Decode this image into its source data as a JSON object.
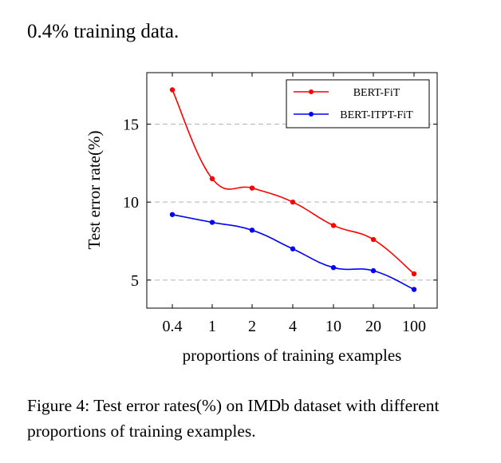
{
  "top_text": "0.4% training data.",
  "caption": "Figure 4: Test error rates(%) on IMDb dataset with different proportions of training examples.",
  "chart_data": {
    "type": "line",
    "categories": [
      "0.4",
      "1",
      "2",
      "4",
      "10",
      "20",
      "100"
    ],
    "xlabel": "proportions of training examples",
    "ylabel": "Test error rate(%)",
    "yticks": [
      5,
      10,
      15
    ],
    "ylim": [
      3.2,
      18.3
    ],
    "grid": "horizontal dashed",
    "legend_position": "top-right",
    "series": [
      {
        "name": "BERT-FiT",
        "color": "#ff0000",
        "values": [
          17.2,
          11.5,
          10.9,
          10.0,
          8.5,
          7.6,
          5.4
        ]
      },
      {
        "name": "BERT-ITPT-FiT",
        "color": "#0000ff",
        "values": [
          9.2,
          8.7,
          8.2,
          7.0,
          5.8,
          5.6,
          4.4
        ]
      }
    ]
  }
}
